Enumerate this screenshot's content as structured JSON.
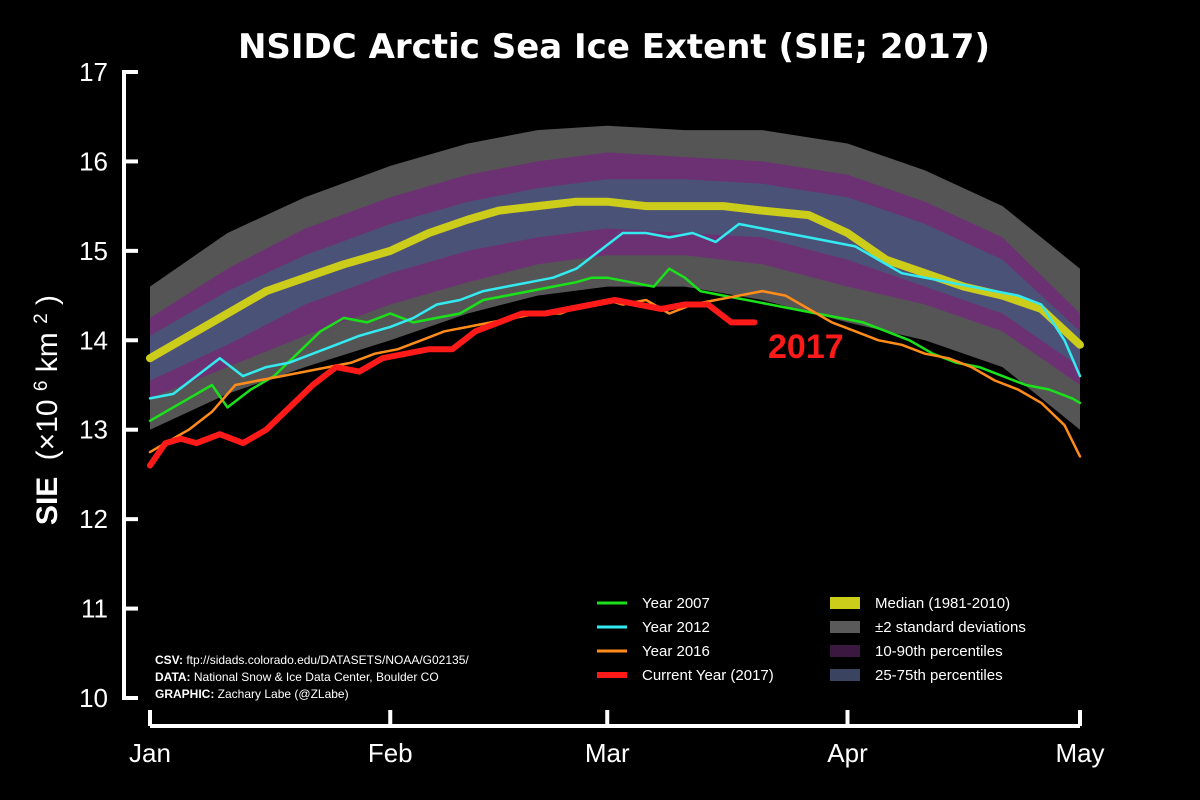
{
  "chart_data": {
    "type": "line",
    "title": "NSIDC Arctic Sea Ice Extent (SIE; 2017)",
    "ylabel": {
      "main": "SIE",
      "unit_prefix": "(×10",
      "unit_exp1": "6",
      "unit_mid": " km",
      "unit_exp2": "2",
      "unit_suffix": ")"
    },
    "xlabel": "",
    "xlim": [
      1,
      121
    ],
    "ylim": [
      10,
      17
    ],
    "yticks": [
      10,
      11,
      12,
      13,
      14,
      15,
      16,
      17
    ],
    "xticks": [
      {
        "label": "Jan",
        "day": 1
      },
      {
        "label": "Feb",
        "day": 32
      },
      {
        "label": "Mar",
        "day": 60
      },
      {
        "label": "Apr",
        "day": 91
      },
      {
        "label": "May",
        "day": 121
      }
    ],
    "bands": [
      {
        "name": "±2 standard deviations",
        "color": "#5a5a5a",
        "x": [
          1,
          11,
          21,
          32,
          42,
          51,
          60,
          70,
          80,
          91,
          101,
          111,
          121
        ],
        "lower": [
          13.0,
          13.4,
          13.7,
          14.0,
          14.3,
          14.5,
          14.6,
          14.6,
          14.45,
          14.2,
          14.0,
          13.7,
          13.0
        ],
        "upper": [
          14.6,
          15.2,
          15.6,
          15.95,
          16.2,
          16.35,
          16.4,
          16.35,
          16.35,
          16.2,
          15.9,
          15.5,
          14.8
        ]
      },
      {
        "name": "10-90th percentiles",
        "color": "#6e2f74",
        "x": [
          1,
          11,
          21,
          32,
          42,
          51,
          60,
          70,
          80,
          91,
          101,
          111,
          121
        ],
        "lower": [
          13.35,
          13.7,
          14.05,
          14.4,
          14.65,
          14.85,
          14.95,
          14.95,
          14.85,
          14.6,
          14.4,
          14.1,
          13.5
        ],
        "upper": [
          14.25,
          14.8,
          15.25,
          15.6,
          15.85,
          16.0,
          16.1,
          16.05,
          16.0,
          15.85,
          15.55,
          15.15,
          14.3
        ]
      },
      {
        "name": "25-75th percentiles",
        "color": "#4a5478",
        "x": [
          1,
          11,
          21,
          32,
          42,
          51,
          60,
          70,
          80,
          91,
          101,
          111,
          121
        ],
        "lower": [
          13.55,
          13.95,
          14.4,
          14.75,
          15.0,
          15.15,
          15.25,
          15.2,
          15.15,
          14.9,
          14.6,
          14.3,
          13.7
        ],
        "upper": [
          14.05,
          14.55,
          14.95,
          15.3,
          15.55,
          15.7,
          15.8,
          15.8,
          15.75,
          15.6,
          15.3,
          14.9,
          14.1
        ]
      }
    ],
    "series": [
      {
        "name": "Median (1981-2010)",
        "color": "#cccc1a",
        "width": 8,
        "x": [
          1,
          6,
          11,
          16,
          21,
          26,
          32,
          37,
          42,
          46,
          51,
          56,
          60,
          65,
          70,
          75,
          80,
          86,
          91,
          96,
          101,
          106,
          111,
          116,
          121
        ],
        "values": [
          13.8,
          14.05,
          14.3,
          14.55,
          14.7,
          14.85,
          15.0,
          15.2,
          15.35,
          15.45,
          15.5,
          15.55,
          15.55,
          15.5,
          15.5,
          15.5,
          15.45,
          15.4,
          15.2,
          14.9,
          14.75,
          14.6,
          14.5,
          14.35,
          13.95
        ]
      },
      {
        "name": "Year 2007",
        "color": "#1be11b",
        "width": 2.5,
        "x": [
          1,
          3,
          6,
          9,
          11,
          14,
          17,
          20,
          23,
          26,
          29,
          32,
          35,
          38,
          41,
          44,
          47,
          50,
          53,
          56,
          58,
          60,
          63,
          66,
          68,
          70,
          72,
          75,
          78,
          81,
          84,
          87,
          90,
          93,
          96,
          99,
          102,
          105,
          108,
          111,
          114,
          117,
          120,
          121
        ],
        "values": [
          13.1,
          13.2,
          13.35,
          13.5,
          13.25,
          13.45,
          13.6,
          13.85,
          14.1,
          14.25,
          14.2,
          14.3,
          14.2,
          14.25,
          14.3,
          14.45,
          14.5,
          14.55,
          14.6,
          14.65,
          14.7,
          14.7,
          14.65,
          14.6,
          14.8,
          14.7,
          14.55,
          14.5,
          14.45,
          14.4,
          14.35,
          14.3,
          14.25,
          14.2,
          14.1,
          14.0,
          13.85,
          13.75,
          13.7,
          13.6,
          13.5,
          13.45,
          13.35,
          13.3
        ]
      },
      {
        "name": "Year 2012",
        "color": "#33eaf0",
        "width": 2.5,
        "x": [
          1,
          4,
          7,
          10,
          13,
          16,
          19,
          22,
          25,
          28,
          32,
          35,
          38,
          41,
          44,
          47,
          50,
          53,
          56,
          59,
          62,
          65,
          68,
          71,
          74,
          77,
          80,
          83,
          86,
          89,
          92,
          95,
          98,
          101,
          104,
          107,
          110,
          113,
          116,
          119,
          121
        ],
        "values": [
          13.35,
          13.4,
          13.6,
          13.8,
          13.6,
          13.7,
          13.75,
          13.85,
          13.95,
          14.05,
          14.15,
          14.25,
          14.4,
          14.45,
          14.55,
          14.6,
          14.65,
          14.7,
          14.8,
          15.0,
          15.2,
          15.2,
          15.15,
          15.2,
          15.1,
          15.3,
          15.25,
          15.2,
          15.15,
          15.1,
          15.05,
          14.9,
          14.75,
          14.7,
          14.65,
          14.6,
          14.55,
          14.5,
          14.4,
          14.0,
          13.6
        ]
      },
      {
        "name": "Year 2016",
        "color": "#ff8c1a",
        "width": 2.5,
        "x": [
          1,
          3,
          6,
          9,
          12,
          15,
          18,
          21,
          24,
          27,
          30,
          33,
          36,
          39,
          42,
          45,
          48,
          51,
          54,
          57,
          60,
          62,
          65,
          68,
          71,
          74,
          77,
          80,
          83,
          86,
          89,
          92,
          95,
          98,
          101,
          104,
          107,
          110,
          113,
          116,
          119,
          121
        ],
        "values": [
          12.75,
          12.85,
          13.0,
          13.2,
          13.5,
          13.55,
          13.6,
          13.65,
          13.7,
          13.75,
          13.85,
          13.9,
          14.0,
          14.1,
          14.15,
          14.2,
          14.25,
          14.3,
          14.3,
          14.4,
          14.45,
          14.4,
          14.45,
          14.3,
          14.4,
          14.45,
          14.5,
          14.55,
          14.5,
          14.35,
          14.2,
          14.1,
          14.0,
          13.95,
          13.85,
          13.8,
          13.7,
          13.55,
          13.45,
          13.3,
          13.05,
          12.7
        ]
      },
      {
        "name": "Current Year (2017)",
        "color": "#ff1a1a",
        "width": 6,
        "x": [
          1,
          3,
          5,
          7,
          10,
          13,
          16,
          19,
          22,
          25,
          28,
          31,
          34,
          37,
          40,
          43,
          46,
          49,
          52,
          55,
          58,
          61,
          64,
          67,
          70,
          73,
          76,
          79
        ],
        "values": [
          12.6,
          12.85,
          12.9,
          12.85,
          12.95,
          12.85,
          13.0,
          13.25,
          13.5,
          13.7,
          13.65,
          13.8,
          13.85,
          13.9,
          13.9,
          14.1,
          14.2,
          14.3,
          14.3,
          14.35,
          14.4,
          14.45,
          14.4,
          14.35,
          14.4,
          14.4,
          14.2,
          14.2
        ]
      }
    ],
    "legend": {
      "placement": "bottom-right",
      "lines": [
        {
          "label": "Year 2007",
          "color": "#1be11b",
          "kind": "line"
        },
        {
          "label": "Year 2012",
          "color": "#33eaf0",
          "kind": "line"
        },
        {
          "label": "Year 2016",
          "color": "#ff8c1a",
          "kind": "line"
        },
        {
          "label": "Current Year (2017)",
          "color": "#ff1a1a",
          "kind": "thick"
        }
      ],
      "fills": [
        {
          "label": "Median (1981-2010)",
          "color": "#cccc1a"
        },
        {
          "label": "±2 standard deviations",
          "color": "#5a5a5a"
        },
        {
          "label": "10-90th percentiles",
          "color": "#3a1840"
        },
        {
          "label": "25-75th percentiles",
          "color": "#3a4460"
        }
      ]
    },
    "annotation": {
      "text": "2017",
      "color": "#ff1a1a",
      "x": 83,
      "y": 14.0
    },
    "credits": [
      {
        "key": "CSV:",
        "value": " ftp://sidads.colorado.edu/DATASETS/NOAA/G02135/"
      },
      {
        "key": "DATA:",
        "value": " National Snow & Ice Data Center, Boulder CO"
      },
      {
        "key": "GRAPHIC:",
        "value": " Zachary Labe (@ZLabe)"
      }
    ]
  }
}
